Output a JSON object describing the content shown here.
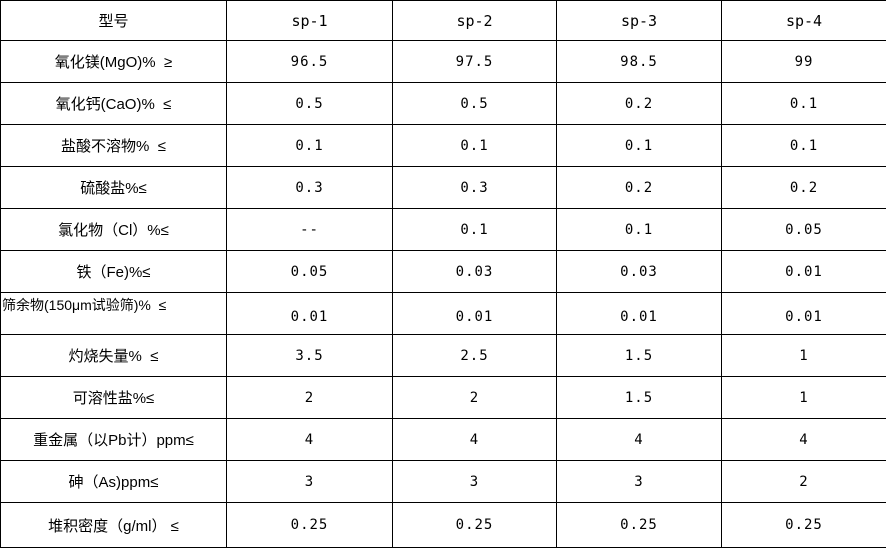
{
  "colors": {
    "border": "#000000",
    "background": "#ffffff",
    "text": "#000000"
  },
  "table": {
    "header": [
      "型号",
      "sp-1",
      "sp-2",
      "sp-3",
      "sp-4"
    ],
    "rows": [
      {
        "label": "氧化镁(MgO)%  ≥",
        "values": [
          "96.5",
          "97.5",
          "98.5",
          "99"
        ]
      },
      {
        "label": "氧化钙(CaO)%  ≤",
        "values": [
          "0.5",
          "0.5",
          "0.2",
          "0.1"
        ]
      },
      {
        "label": "盐酸不溶物%  ≤",
        "values": [
          "0.1",
          "0.1",
          "0.1",
          "0.1"
        ]
      },
      {
        "label": "硫酸盐%≤",
        "values": [
          "0.3",
          "0.3",
          "0.2",
          "0.2"
        ]
      },
      {
        "label": "氯化物（Cl）%≤",
        "values": [
          "--",
          "0.1",
          "0.1",
          "0.05"
        ]
      },
      {
        "label": "铁（Fe)%≤",
        "values": [
          "0.05",
          "0.03",
          "0.03",
          "0.01"
        ]
      },
      {
        "label": "筛余物(150μm试验筛)%  ≤",
        "values": [
          "0.01",
          "0.01",
          "0.01",
          "0.01"
        ]
      },
      {
        "label": "灼烧失量%  ≤",
        "values": [
          "3.5",
          "2.5",
          "1.5",
          "1"
        ]
      },
      {
        "label": "可溶性盐%≤",
        "values": [
          "2",
          "2",
          "1.5",
          "1"
        ]
      },
      {
        "label": "重金属（以Pb计）ppm≤",
        "values": [
          "4",
          "4",
          "4",
          "4"
        ]
      },
      {
        "label": "砷（As)ppm≤",
        "values": [
          "3",
          "3",
          "3",
          "2"
        ]
      },
      {
        "label": "堆积密度（g/ml） ≤",
        "values": [
          "0.25",
          "0.25",
          "0.25",
          "0.25"
        ]
      }
    ]
  },
  "chart_data": {
    "type": "table",
    "title": "",
    "columns": [
      "型号",
      "sp-1",
      "sp-2",
      "sp-3",
      "sp-4"
    ],
    "rows": [
      [
        "氧化镁(MgO)% ≥",
        "96.5",
        "97.5",
        "98.5",
        "99"
      ],
      [
        "氧化钙(CaO)% ≤",
        "0.5",
        "0.5",
        "0.2",
        "0.1"
      ],
      [
        "盐酸不溶物% ≤",
        "0.1",
        "0.1",
        "0.1",
        "0.1"
      ],
      [
        "硫酸盐%≤",
        "0.3",
        "0.3",
        "0.2",
        "0.2"
      ],
      [
        "氯化物（Cl）%≤",
        "--",
        "0.1",
        "0.1",
        "0.05"
      ],
      [
        "铁（Fe)%≤",
        "0.05",
        "0.03",
        "0.03",
        "0.01"
      ],
      [
        "筛余物(150μm试验筛)% ≤",
        "0.01",
        "0.01",
        "0.01",
        "0.01"
      ],
      [
        "灼烧失量% ≤",
        "3.5",
        "2.5",
        "1.5",
        "1"
      ],
      [
        "可溶性盐%≤",
        "2",
        "2",
        "1.5",
        "1"
      ],
      [
        "重金属（以Pb计）ppm≤",
        "4",
        "4",
        "4",
        "4"
      ],
      [
        "砷（As)ppm≤",
        "3",
        "3",
        "3",
        "2"
      ],
      [
        "堆积密度（g/ml） ≤",
        "0.25",
        "0.25",
        "0.25",
        "0.25"
      ]
    ]
  }
}
